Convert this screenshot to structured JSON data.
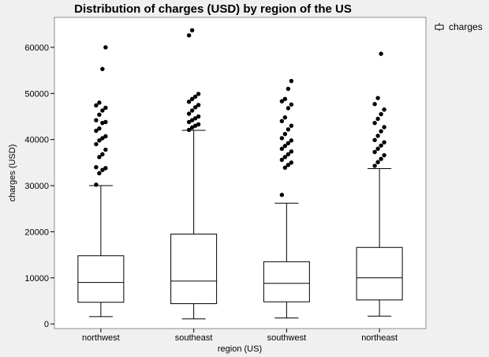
{
  "chart_data": {
    "type": "box",
    "title": "Distribution of charges (USD) by region of the US",
    "xlabel": "region (US)",
    "ylabel": "charges (USD)",
    "ylim": [
      -1000,
      66500
    ],
    "yticks": [
      0,
      10000,
      20000,
      30000,
      40000,
      50000,
      60000
    ],
    "ytick_labels": [
      "0",
      "10000",
      "20000",
      "30000",
      "40000",
      "50000",
      "60000"
    ],
    "categories": [
      "northwest",
      "southeast",
      "southwest",
      "northeast"
    ],
    "legend": {
      "label": "charges",
      "placement": "top-right"
    },
    "series": [
      {
        "name": "charges",
        "boxes": [
          {
            "category": "northwest",
            "whisker_low": 1600,
            "q1": 4700,
            "median": 9000,
            "q3": 14800,
            "whisker_high": 30000,
            "outliers": [
              30200,
              32700,
              33400,
              33800,
              34000,
              36200,
              36800,
              37800,
              39000,
              39800,
              40300,
              40700,
              41900,
              42400,
              43600,
              43800,
              44200,
              45400,
              46300,
              46900,
              47400,
              48000,
              55300,
              60000
            ]
          },
          {
            "category": "southeast",
            "whisker_low": 1100,
            "q1": 4400,
            "median": 9300,
            "q3": 19500,
            "whisker_high": 42000,
            "outliers": [
              42100,
              42600,
              43000,
              43300,
              43800,
              44200,
              44600,
              45000,
              45600,
              46300,
              47000,
              47500,
              48200,
              48800,
              49300,
              49900,
              62600,
              63700
            ]
          },
          {
            "category": "southwest",
            "whisker_low": 1300,
            "q1": 4800,
            "median": 8800,
            "q3": 13500,
            "whisker_high": 26200,
            "outliers": [
              28000,
              33900,
              34500,
              35000,
              35600,
              36200,
              36800,
              37400,
              38000,
              38600,
              39200,
              39800,
              40300,
              41200,
              42200,
              43000,
              44000,
              44800,
              46800,
              47600,
              48300,
              48800,
              51000,
              52700
            ]
          },
          {
            "category": "northeast",
            "whisker_low": 1700,
            "q1": 5200,
            "median": 10000,
            "q3": 16600,
            "whisker_high": 33700,
            "outliers": [
              34300,
              35100,
              35800,
              36600,
              37300,
              38000,
              38700,
              39400,
              39900,
              40800,
              41800,
              42700,
              43600,
              44500,
              45500,
              46500,
              47700,
              49000,
              58600
            ]
          }
        ]
      }
    ]
  }
}
